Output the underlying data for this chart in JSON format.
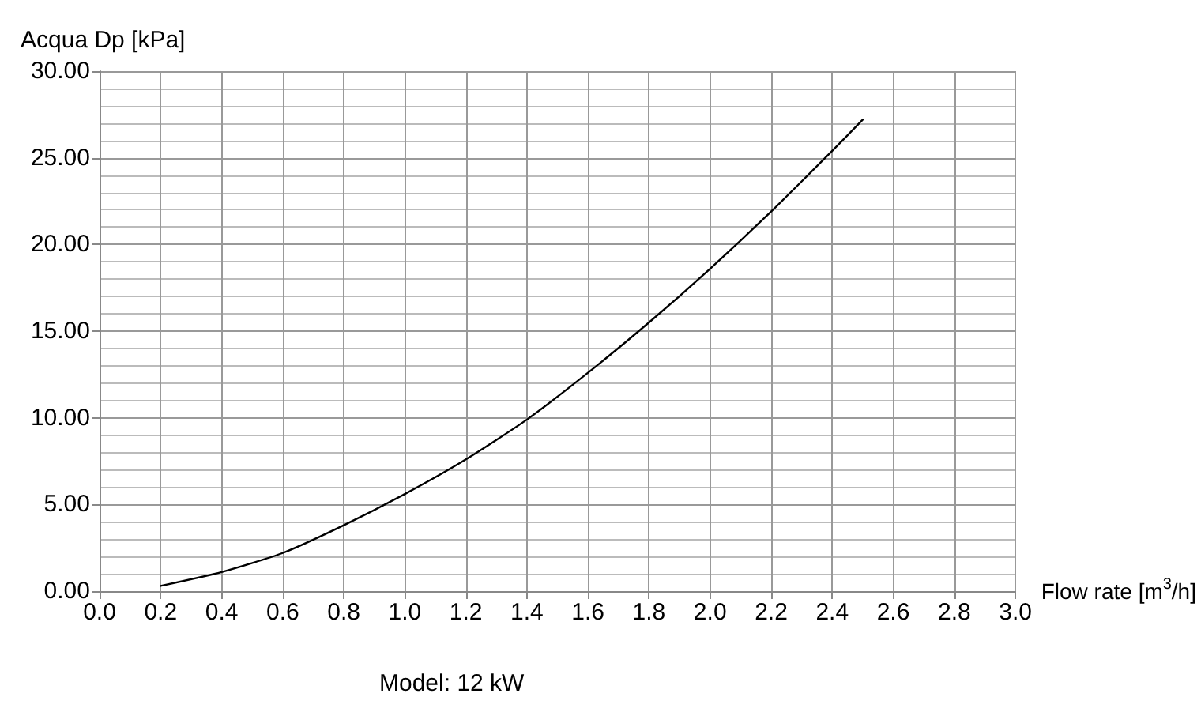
{
  "chart_data": {
    "type": "line",
    "xlabel": "Flow rate [m$^{3}$/h]",
    "ylabel": "Acqua Dp [kPa]",
    "annotations": [
      "Model: 12 kW"
    ],
    "x": [
      0.2,
      0.4,
      0.6,
      0.8,
      1.0,
      1.2,
      1.4,
      1.6,
      1.8,
      2.0,
      2.2,
      2.4,
      2.5
    ],
    "series": [
      {
        "color": "#000000",
        "values": [
          0.3,
          1.1,
          2.2,
          3.8,
          5.6,
          7.6,
          9.9,
          12.6,
          15.5,
          18.6,
          21.9,
          25.4,
          27.2
        ]
      }
    ],
    "xlim": [
      0,
      3
    ],
    "xticks": [
      {
        "value": 0,
        "label": "0.0"
      },
      {
        "value": 0.2,
        "label": "0.2"
      },
      {
        "value": 0.4,
        "label": "0.4"
      },
      {
        "value": 0.6,
        "label": "0.6"
      },
      {
        "value": 0.8,
        "label": "0.8"
      },
      {
        "value": 1,
        "label": "1.0"
      },
      {
        "value": 1.2,
        "label": "1.2"
      },
      {
        "value": 1.4,
        "label": "1.4"
      },
      {
        "value": 1.6,
        "label": "1.6"
      },
      {
        "value": 1.8,
        "label": "1.8"
      },
      {
        "value": 2,
        "label": "2.0"
      },
      {
        "value": 2.2,
        "label": "2.2"
      },
      {
        "value": 2.4,
        "label": "2.4"
      },
      {
        "value": 2.6,
        "label": "2.6"
      },
      {
        "value": 2.8,
        "label": "2.8"
      },
      {
        "value": 3,
        "label": "3.0"
      }
    ],
    "ylim": [
      0,
      30
    ],
    "yticks": [
      {
        "value": 0,
        "label": "0.00"
      },
      {
        "value": 5,
        "label": "5.00"
      },
      {
        "value": 10,
        "label": "10.00"
      },
      {
        "value": 15,
        "label": "15.00"
      },
      {
        "value": 20,
        "label": "20.00"
      },
      {
        "value": 25,
        "label": "25.00"
      },
      {
        "value": 30,
        "label": "30.00"
      }
    ],
    "grid": true,
    "marker": "none",
    "line_style": "solid"
  }
}
